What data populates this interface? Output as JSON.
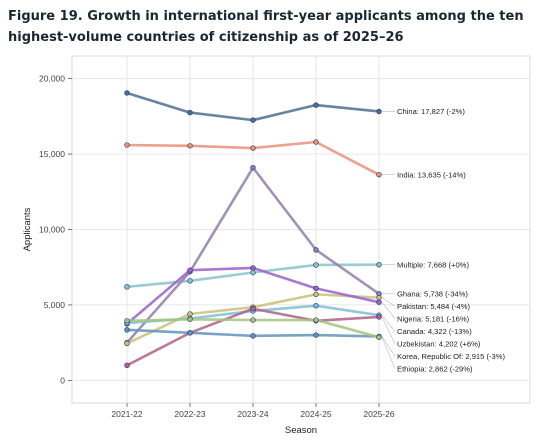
{
  "chart_data": {
    "type": "line",
    "title": "Figure 19. Growth in international first-year applicants among the ten highest-volume countries of citizenship as of 2025–26",
    "xlabel": "Season",
    "ylabel": "Applicants",
    "categories": [
      "2021-22",
      "2022-23",
      "2023-24",
      "2024-25",
      "2025-26"
    ],
    "ylim": [
      -1500,
      21500
    ],
    "yticks": [
      0,
      5000,
      10000,
      15000,
      20000
    ],
    "ytick_labels": [
      "0",
      "5,000",
      "10,000",
      "15,000",
      "20,000"
    ],
    "grid": true,
    "series": [
      {
        "name": "China",
        "values": [
          19050,
          17750,
          17250,
          18250,
          17827
        ],
        "color": "#4f6d8f",
        "label": "China: 17,827 (-2%)"
      },
      {
        "name": "India",
        "values": [
          15600,
          15550,
          15400,
          15800,
          13635
        ],
        "color": "#e8907a",
        "label": "India: 13,635 (-14%)"
      },
      {
        "name": "Multiple",
        "values": [
          6200,
          6600,
          7150,
          7650,
          7668
        ],
        "color": "#8ac3cc",
        "label": "Multiple: 7,668 (+0%)"
      },
      {
        "name": "Ghana",
        "values": [
          2500,
          7200,
          14100,
          8650,
          5738
        ],
        "color": "#8f7faa",
        "label": "Ghana: 5,738 (-34%)"
      },
      {
        "name": "Pakistan",
        "values": [
          2450,
          4400,
          4850,
          5700,
          5484
        ],
        "color": "#c9c07a",
        "label": "Pakistan: 5,484 (-4%)"
      },
      {
        "name": "Nigeria",
        "values": [
          3750,
          7300,
          7450,
          6100,
          5181
        ],
        "color": "#9a62c8",
        "label": "Nigeria: 5,181 (-16%)"
      },
      {
        "name": "Canada",
        "values": [
          3800,
          4100,
          4600,
          4950,
          4322
        ],
        "color": "#7cc0d6",
        "label": "Canada: 4,322 (-13%)"
      },
      {
        "name": "Uzbekistan",
        "values": [
          1000,
          3150,
          4750,
          3950,
          4202
        ],
        "color": "#b0608a",
        "label": "Uzbekistan: 4,202 (+6%)"
      },
      {
        "name": "Korea, Republic Of",
        "values": [
          3350,
          3150,
          2950,
          3000,
          2915
        ],
        "color": "#5f93ba",
        "label": "Korea, Republic Of: 2,915 (-3%)"
      },
      {
        "name": "Ethiopia",
        "values": [
          3950,
          4050,
          4000,
          4000,
          2862
        ],
        "color": "#a3c47c",
        "label": "Ethiopia: 2,862 (-29%)"
      }
    ]
  }
}
